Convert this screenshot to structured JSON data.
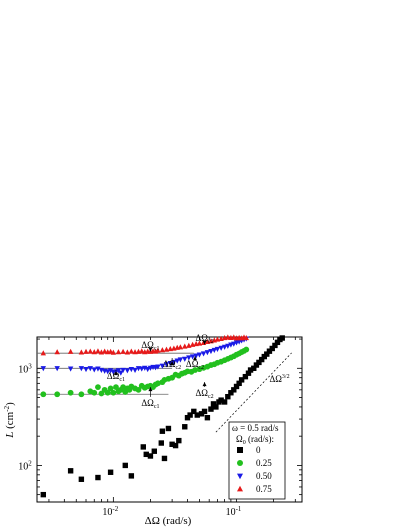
{
  "chart_data": {
    "type": "scatter",
    "x_scale": "log",
    "y_scale": "log",
    "xlim": [
      0.0024,
      0.34
    ],
    "ylim": [
      42,
      2100
    ],
    "x_ticks": [
      {
        "value": 0.01,
        "base": "10",
        "exp": "-2"
      },
      {
        "value": 0.1,
        "base": "10",
        "exp": "-1"
      }
    ],
    "y_ticks": [
      {
        "value": 100,
        "base": "10",
        "exp": "2"
      },
      {
        "value": 1000,
        "base": "10",
        "exp": "3"
      }
    ],
    "xlabel": "ΔΩ (rad/s)",
    "ylabel_main": "L",
    "ylabel_unit": " (cm",
    "ylabel_exp": "-2",
    "ylabel_close": ")",
    "legend": {
      "title_line1": "ω = 0.5 rad/s",
      "title_line2_main": "Ω",
      "title_line2_sub": "0",
      "title_line2_rest": " (rad/s):",
      "position": "bottom-right"
    },
    "series": [
      {
        "name": "0",
        "marker": "square",
        "color": "#000000",
        "points": [
          [
            0.0027,
            50
          ],
          [
            0.0045,
            88
          ],
          [
            0.0055,
            72
          ],
          [
            0.0075,
            75
          ],
          [
            0.0095,
            85
          ],
          [
            0.0125,
            100
          ],
          [
            0.014,
            78
          ],
          [
            0.0175,
            155
          ],
          [
            0.0185,
            130
          ],
          [
            0.02,
            125
          ],
          [
            0.0215,
            140
          ],
          [
            0.0245,
            170
          ],
          [
            0.025,
            225
          ],
          [
            0.026,
            118
          ],
          [
            0.028,
            240
          ],
          [
            0.03,
            165
          ],
          [
            0.032,
            160
          ],
          [
            0.034,
            180
          ],
          [
            0.038,
            250
          ],
          [
            0.04,
            310
          ],
          [
            0.042,
            330
          ],
          [
            0.045,
            360
          ],
          [
            0.048,
            330
          ],
          [
            0.052,
            340
          ],
          [
            0.055,
            360
          ],
          [
            0.058,
            310
          ],
          [
            0.062,
            380
          ],
          [
            0.065,
            430
          ],
          [
            0.068,
            400
          ],
          [
            0.072,
            450
          ],
          [
            0.075,
            470
          ],
          [
            0.08,
            450
          ],
          [
            0.085,
            510
          ],
          [
            0.09,
            560
          ],
          [
            0.095,
            600
          ],
          [
            0.1,
            650
          ],
          [
            0.105,
            700
          ],
          [
            0.11,
            760
          ],
          [
            0.118,
            820
          ],
          [
            0.125,
            890
          ],
          [
            0.13,
            960
          ],
          [
            0.138,
            1000
          ],
          [
            0.145,
            1080
          ],
          [
            0.152,
            1150
          ],
          [
            0.16,
            1230
          ],
          [
            0.168,
            1320
          ],
          [
            0.176,
            1400
          ],
          [
            0.185,
            1500
          ],
          [
            0.195,
            1600
          ],
          [
            0.205,
            1720
          ],
          [
            0.215,
            1850
          ],
          [
            0.225,
            1980
          ],
          [
            0.235,
            2050
          ]
        ]
      },
      {
        "name": "0.25",
        "marker": "circle",
        "color": "#22c01e",
        "points": [
          [
            0.0027,
            540
          ],
          [
            0.0035,
            540
          ],
          [
            0.0045,
            560
          ],
          [
            0.0055,
            540
          ],
          [
            0.0065,
            580
          ],
          [
            0.007,
            560
          ],
          [
            0.0075,
            640
          ],
          [
            0.008,
            550
          ],
          [
            0.0085,
            600
          ],
          [
            0.009,
            560
          ],
          [
            0.0095,
            620
          ],
          [
            0.01,
            560
          ],
          [
            0.0105,
            640
          ],
          [
            0.011,
            580
          ],
          [
            0.0115,
            600
          ],
          [
            0.012,
            640
          ],
          [
            0.0125,
            570
          ],
          [
            0.013,
            620
          ],
          [
            0.0135,
            600
          ],
          [
            0.014,
            650
          ],
          [
            0.015,
            620
          ],
          [
            0.016,
            600
          ],
          [
            0.017,
            660
          ],
          [
            0.018,
            630
          ],
          [
            0.019,
            650
          ],
          [
            0.02,
            660
          ],
          [
            0.021,
            640
          ],
          [
            0.022,
            680
          ],
          [
            0.023,
            700
          ],
          [
            0.025,
            720
          ],
          [
            0.026,
            760
          ],
          [
            0.028,
            780
          ],
          [
            0.03,
            800
          ],
          [
            0.032,
            860
          ],
          [
            0.034,
            840
          ],
          [
            0.036,
            880
          ],
          [
            0.038,
            900
          ],
          [
            0.04,
            930
          ],
          [
            0.043,
            920
          ],
          [
            0.046,
            960
          ],
          [
            0.05,
            980
          ],
          [
            0.054,
            1010
          ],
          [
            0.058,
            1040
          ],
          [
            0.062,
            1080
          ],
          [
            0.066,
            1100
          ],
          [
            0.07,
            1140
          ],
          [
            0.075,
            1170
          ],
          [
            0.08,
            1210
          ],
          [
            0.085,
            1250
          ],
          [
            0.09,
            1290
          ],
          [
            0.095,
            1330
          ],
          [
            0.1,
            1380
          ],
          [
            0.105,
            1420
          ],
          [
            0.11,
            1470
          ],
          [
            0.115,
            1510
          ],
          [
            0.12,
            1560
          ]
        ]
      },
      {
        "name": "0.50",
        "marker": "triangle-down",
        "color": "#1a1ae6",
        "points": [
          [
            0.0027,
            1000
          ],
          [
            0.0035,
            1000
          ],
          [
            0.0045,
            990
          ],
          [
            0.0055,
            1000
          ],
          [
            0.006,
            980
          ],
          [
            0.0065,
            1000
          ],
          [
            0.007,
            970
          ],
          [
            0.0075,
            990
          ],
          [
            0.008,
            960
          ],
          [
            0.0085,
            940
          ],
          [
            0.009,
            930
          ],
          [
            0.0095,
            950
          ],
          [
            0.01,
            920
          ],
          [
            0.0105,
            930
          ],
          [
            0.011,
            950
          ],
          [
            0.0115,
            900
          ],
          [
            0.012,
            960
          ],
          [
            0.013,
            950
          ],
          [
            0.014,
            980
          ],
          [
            0.015,
            960
          ],
          [
            0.016,
            1000
          ],
          [
            0.017,
            990
          ],
          [
            0.018,
            1010
          ],
          [
            0.019,
            980
          ],
          [
            0.02,
            1010
          ],
          [
            0.021,
            1030
          ],
          [
            0.022,
            1020
          ],
          [
            0.023,
            1040
          ],
          [
            0.025,
            1060
          ],
          [
            0.027,
            1100
          ],
          [
            0.029,
            1130
          ],
          [
            0.031,
            1160
          ],
          [
            0.033,
            1200
          ],
          [
            0.035,
            1230
          ],
          [
            0.038,
            1250
          ],
          [
            0.041,
            1290
          ],
          [
            0.044,
            1320
          ],
          [
            0.047,
            1350
          ],
          [
            0.05,
            1380
          ],
          [
            0.054,
            1420
          ],
          [
            0.058,
            1460
          ],
          [
            0.062,
            1500
          ],
          [
            0.066,
            1540
          ],
          [
            0.07,
            1580
          ],
          [
            0.075,
            1620
          ],
          [
            0.08,
            1660
          ],
          [
            0.085,
            1700
          ],
          [
            0.09,
            1750
          ],
          [
            0.095,
            1790
          ],
          [
            0.1,
            1840
          ],
          [
            0.105,
            1880
          ],
          [
            0.11,
            1930
          ],
          [
            0.115,
            1970
          ],
          [
            0.12,
            2020
          ]
        ]
      },
      {
        "name": "0.75",
        "marker": "triangle-up",
        "color": "#e61a1a",
        "points": [
          [
            0.0027,
            1430
          ],
          [
            0.0035,
            1470
          ],
          [
            0.0045,
            1480
          ],
          [
            0.0055,
            1460
          ],
          [
            0.006,
            1480
          ],
          [
            0.0065,
            1490
          ],
          [
            0.007,
            1470
          ],
          [
            0.0075,
            1500
          ],
          [
            0.008,
            1460
          ],
          [
            0.0085,
            1490
          ],
          [
            0.009,
            1470
          ],
          [
            0.0095,
            1480
          ],
          [
            0.01,
            1450
          ],
          [
            0.011,
            1470
          ],
          [
            0.012,
            1480
          ],
          [
            0.013,
            1460
          ],
          [
            0.014,
            1490
          ],
          [
            0.015,
            1470
          ],
          [
            0.016,
            1480
          ],
          [
            0.017,
            1500
          ],
          [
            0.018,
            1470
          ],
          [
            0.019,
            1490
          ],
          [
            0.02,
            1480
          ],
          [
            0.021,
            1500
          ],
          [
            0.022,
            1490
          ],
          [
            0.023,
            1520
          ],
          [
            0.025,
            1540
          ],
          [
            0.027,
            1560
          ],
          [
            0.029,
            1580
          ],
          [
            0.031,
            1600
          ],
          [
            0.033,
            1630
          ],
          [
            0.035,
            1650
          ],
          [
            0.038,
            1680
          ],
          [
            0.041,
            1710
          ],
          [
            0.044,
            1750
          ],
          [
            0.047,
            1780
          ],
          [
            0.05,
            1800
          ],
          [
            0.054,
            1830
          ],
          [
            0.058,
            1870
          ],
          [
            0.062,
            1900
          ],
          [
            0.066,
            1940
          ],
          [
            0.07,
            1980
          ],
          [
            0.075,
            2010
          ],
          [
            0.08,
            2050
          ],
          [
            0.085,
            2080
          ],
          [
            0.09,
            2060
          ],
          [
            0.095,
            2080
          ],
          [
            0.1,
            2040
          ],
          [
            0.105,
            2060
          ],
          [
            0.11,
            2040
          ],
          [
            0.115,
            2080
          ],
          [
            0.12,
            2050
          ]
        ]
      }
    ],
    "reference_lines": [
      {
        "y": 1430,
        "x_from": 0.0024,
        "x_to": 0.045
      },
      {
        "y": 1000,
        "x_from": 0.0024,
        "x_to": 0.03
      },
      {
        "y": 540,
        "x_from": 0.0024,
        "x_to": 0.028
      }
    ],
    "slope_line": {
      "x1": 0.068,
      "y1": 220,
      "x2": 0.28,
      "y2": 1440
    },
    "annotations": [
      {
        "main": "ΔΩ",
        "sub": "c1",
        "x": 0.02,
        "y_text": 1620,
        "y_arrow": 1490
      },
      {
        "main": "ΔΩ",
        "sub": "c2",
        "x": 0.055,
        "y_text": 1920,
        "y_arrow": 1760
      },
      {
        "main": "ΔΩ",
        "sub": "c1",
        "x": 0.0105,
        "y_text": 780,
        "y_arrow": 935
      },
      {
        "main": "ΔΩ",
        "sub": "c2",
        "x": 0.03,
        "y_text": 1030,
        "y_arrow": 1190
      },
      {
        "main": "ΔΩ",
        "sub": "c2",
        "x": 0.046,
        "y_text": 1030,
        "y_arrow": 1330
      },
      {
        "main": "ΔΩ",
        "sub": "c1",
        "x": 0.02,
        "y_text": 410,
        "y_arrow": 640
      },
      {
        "main": "ΔΩ",
        "sub": "c2",
        "x": 0.055,
        "y_text": 520,
        "y_arrow": 720
      }
    ],
    "slope_label": {
      "main": "ΔΩ",
      "sup": "3/2",
      "x": 0.185,
      "y": 720
    }
  }
}
